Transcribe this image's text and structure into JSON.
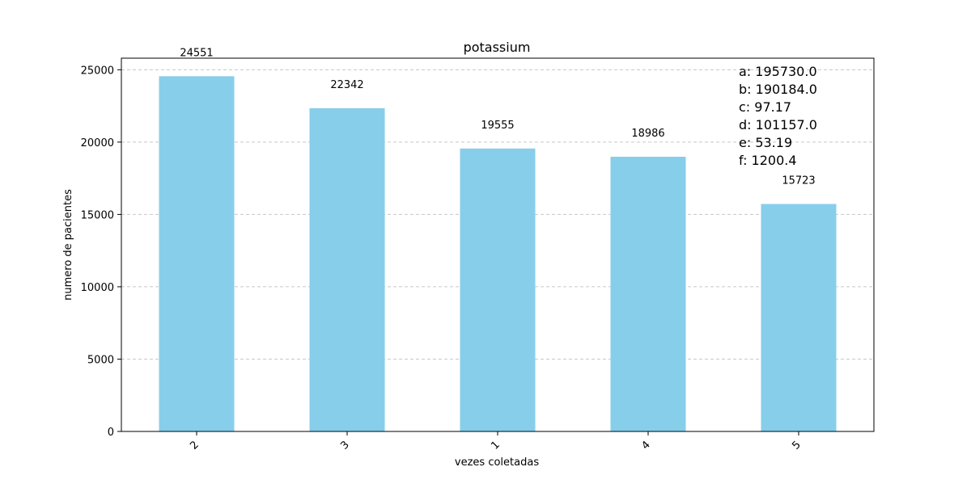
{
  "chart_data": {
    "type": "bar",
    "title": "potassium",
    "xlabel": "vezes coletadas",
    "ylabel": "numero de pacientes",
    "categories": [
      "2",
      "3",
      "1",
      "4",
      "5"
    ],
    "values": [
      24551,
      22342,
      19555,
      18986,
      15723
    ],
    "value_labels": [
      "24551",
      "22342",
      "19555",
      "18986",
      "15723"
    ],
    "ylim": [
      0,
      25800
    ],
    "yticks": [
      0,
      5000,
      10000,
      15000,
      20000,
      25000
    ],
    "ytick_labels": [
      "0",
      "5000",
      "10000",
      "15000",
      "20000",
      "25000"
    ],
    "xtick_rotation": 45,
    "grid": "y-dashed",
    "bar_color": "#87CEEB",
    "grid_color": "#c8c8c8",
    "annotations": [
      "a: 195730.0",
      "b: 190184.0",
      "c: 97.17",
      "d: 101157.0",
      "e: 53.19",
      "f: 1200.4"
    ]
  }
}
